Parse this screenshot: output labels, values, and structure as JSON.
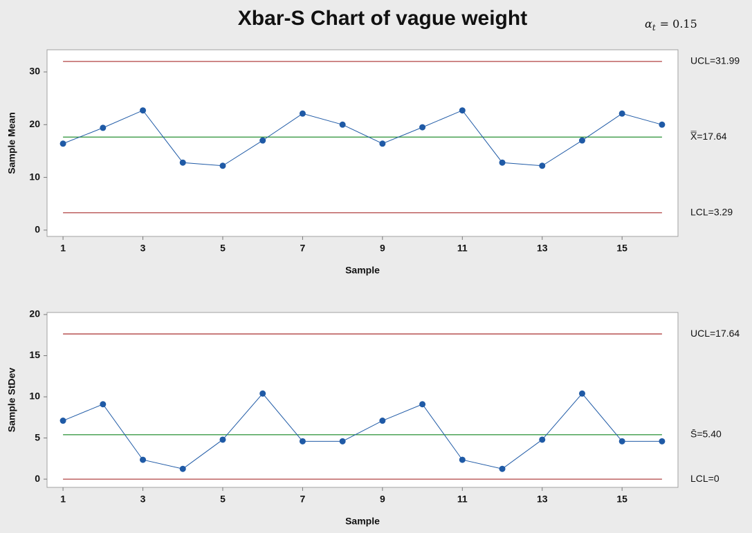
{
  "title": "Xbar-S Chart of vague weight",
  "annotation": {
    "symbol": "α",
    "subscript": "t",
    "text": "= 0.15"
  },
  "chart_data": [
    {
      "type": "line",
      "xlabel": "Sample",
      "ylabel": "Sample Mean",
      "x": [
        1,
        2,
        3,
        4,
        5,
        6,
        7,
        8,
        9,
        10,
        11,
        12,
        13,
        14,
        15,
        16
      ],
      "series": [
        {
          "name": "Sample Mean",
          "color": "#1f5aa6",
          "values": [
            16.4,
            19.4,
            22.7,
            12.8,
            12.2,
            17.0,
            22.1,
            20.0,
            16.4,
            19.5,
            22.7,
            12.8,
            12.2,
            17.0,
            22.1,
            20.0
          ]
        }
      ],
      "limits": [
        {
          "value": 31.99,
          "label": "UCL=31.99",
          "color": "#b04040"
        },
        {
          "value": 17.64,
          "label": "X̿=17.64",
          "color": "#3a9a45"
        },
        {
          "value": 3.29,
          "label": "LCL=3.29",
          "color": "#b04040"
        }
      ],
      "xlim": [
        0.6,
        16.4
      ],
      "xticks": [
        1,
        3,
        5,
        7,
        9,
        11,
        13,
        15
      ],
      "ylim": [
        -1.2,
        34.2
      ],
      "yticks": [
        0,
        10,
        20,
        30
      ]
    },
    {
      "type": "line",
      "xlabel": "Sample",
      "ylabel": "Sample StDev",
      "x": [
        1,
        2,
        3,
        4,
        5,
        6,
        7,
        8,
        9,
        10,
        11,
        12,
        13,
        14,
        15,
        16
      ],
      "series": [
        {
          "name": "Sample StDev",
          "color": "#1f5aa6",
          "values": [
            7.1,
            9.1,
            2.35,
            1.25,
            4.8,
            10.4,
            4.6,
            4.6,
            7.1,
            9.1,
            2.35,
            1.25,
            4.8,
            10.4,
            4.6,
            4.6
          ]
        }
      ],
      "limits": [
        {
          "value": 17.64,
          "label": "UCL=17.64",
          "color": "#b04040"
        },
        {
          "value": 5.4,
          "label": "S̄=5.40",
          "color": "#3a9a45"
        },
        {
          "value": 0,
          "label": "LCL=0",
          "color": "#b04040"
        }
      ],
      "xlim": [
        0.6,
        16.4
      ],
      "xticks": [
        1,
        3,
        5,
        7,
        9,
        11,
        13,
        15
      ],
      "ylim": [
        -1.0,
        20.25
      ],
      "yticks": [
        0,
        5,
        10,
        15,
        20
      ]
    }
  ]
}
